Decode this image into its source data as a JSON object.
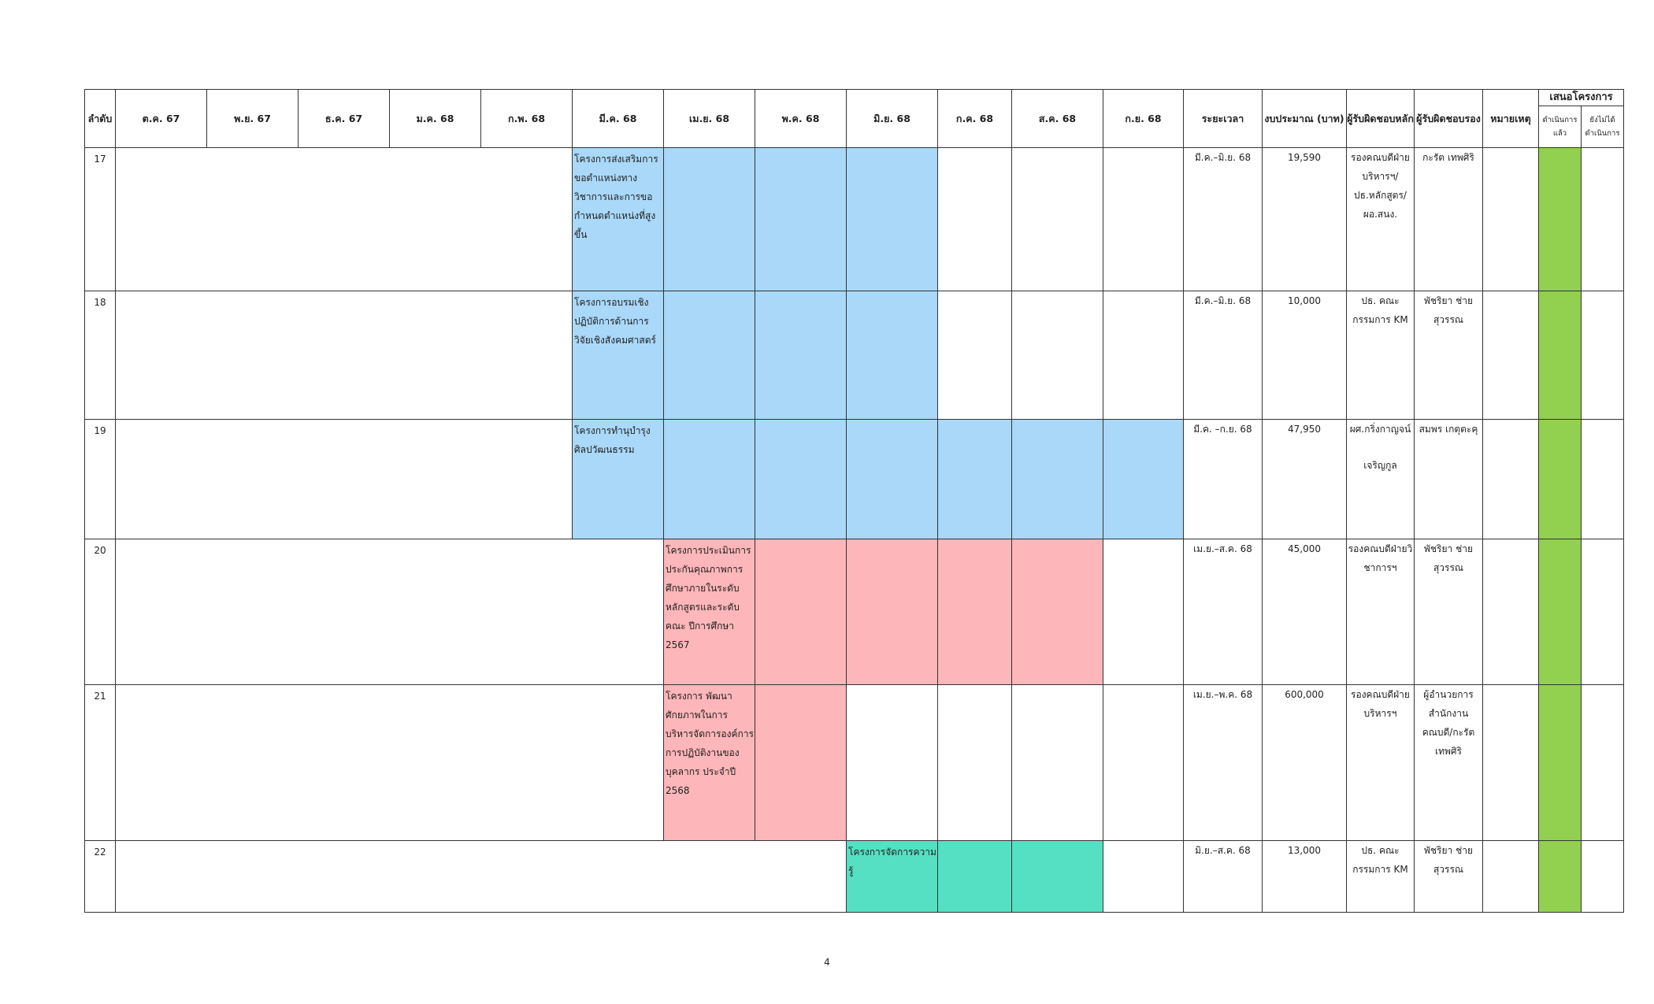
{
  "headers": {
    "index": "ลำดับ",
    "months": [
      "ต.ค. 67",
      "พ.ย. 67",
      "ธ.ค. 67",
      "ม.ค. 68",
      "ก.พ. 68",
      "มี.ค. 68",
      "เม.ย. 68",
      "พ.ค. 68",
      "มิ.ย. 68",
      "ก.ค. 68",
      "ส.ค. 68",
      "ก.ย. 68"
    ],
    "period": "ระยะเวลา",
    "budget": "งบประมาณ (บาท)",
    "main_owner": "ผู้รับผิดชอบหลัก",
    "co_owner": "ผู้รับผิดชอบรอง",
    "remark": "หมายเหตุ",
    "proposal_group": "เสนอโครงการ",
    "done": "ดำเนินการแล้ว",
    "not_done": "ยังไม่ได้ดำเนินการ"
  },
  "rows": [
    {
      "no": "17",
      "project": "โครงการส่งเสริมการขอตำแหน่งทางวิชาการและการขอกำหนดตำแหน่งที่สูงขึ้น",
      "period": "มี.ค.–มิ.ย. 68",
      "budget": "19,590",
      "main_owner": "รองคณบดีฝ่ายบริหารฯ/ปธ.หลักสูตร/ผอ.สนง.",
      "co_owner": "กะรัต เทพศิริ",
      "remark": "",
      "status_done": true,
      "bar_color": "#a9d8f9",
      "bar_span": "มี.ค. 68 – มิ.ย. 68"
    },
    {
      "no": "18",
      "project": "โครงการอบรมเชิงปฏิบัติการด้านการวิจัยเชิงสังคมศาสตร์",
      "period": "มี.ค.–มิ.ย. 68",
      "budget": "10,000",
      "main_owner": "ปธ. คณะกรรมการ KM",
      "co_owner": "พัชริยา ช่ายสุวรรณ",
      "remark": "",
      "status_done": true,
      "bar_color": "#a9d8f9",
      "bar_span": "มี.ค. 68 – มิ.ย. 68"
    },
    {
      "no": "19",
      "project": "โครงการทำนุบำรุงศิลปวัฒนธรรม",
      "period": "มี.ค. –ก.ย. 68",
      "budget": "47,950",
      "main_owner_line1": "ผศ.กริ่งกาญจน์",
      "main_owner_line2": "เจริญกูล",
      "co_owner": "สมพร เกตุตะคุ",
      "remark": "",
      "status_done": true,
      "bar_color": "#a9d8f9",
      "bar_span": "มี.ค. 68 – ก.ย. 68"
    },
    {
      "no": "20",
      "project": "โครงการประเมินการประกันคุณภาพการศึกษาภายในระดับหลักสูตรและระดับคณะ ปีการศึกษา 2567",
      "period": "เม.ย.–ส.ค. 68",
      "budget": "45,000",
      "main_owner": "รองคณบดีฝ่ายวิชาการฯ",
      "co_owner": "พัชริยา ช่ายสุวรรณ",
      "remark": "",
      "status_done": true,
      "bar_color": "#fdb6b9",
      "bar_span": "เม.ย. 68 – ส.ค. 68"
    },
    {
      "no": "21",
      "project": "โครงการ พัฒนาศักยภาพในการบริหารจัดการองค์การ การปฏิบัติงานของบุคลากร ประจำปี 2568",
      "period": "เม.ย.–พ.ค. 68",
      "budget": "600,000",
      "main_owner": "รองคณบดีฝ่ายบริหารฯ",
      "co_owner": "ผู้อำนวยการสำนักงานคณบดี/กะรัต เทพศิริ",
      "remark": "",
      "status_done": true,
      "bar_color": "#fdb6b9",
      "bar_span": "เม.ย. 68 – พ.ค. 68"
    },
    {
      "no": "22",
      "project": "โครงการจัดการความรู้",
      "period": "มิ.ย.–ส.ค. 68",
      "budget": "13,000",
      "main_owner": "ปธ. คณะกรรมการ KM",
      "co_owner": "พัชริยา ช่ายสุวรรณ",
      "remark": "",
      "status_done": true,
      "bar_color": "#56e0c3",
      "bar_span": "มิ.ย. 68 – ส.ค. 68"
    }
  ],
  "colors": {
    "status_done": "#92d050"
  },
  "page_number": "4"
}
